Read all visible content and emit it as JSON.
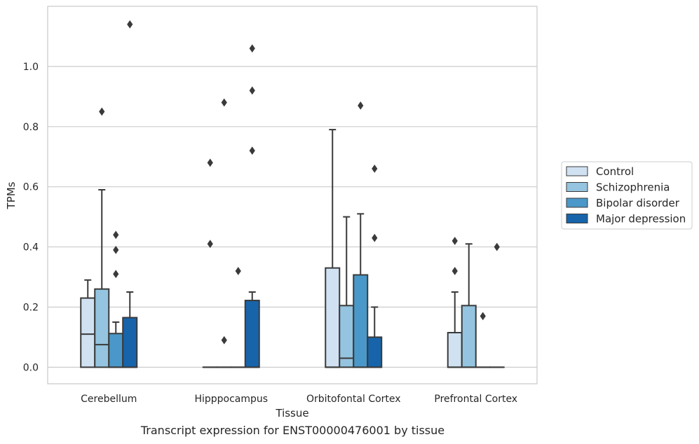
{
  "caption": "Transcript expression for ENST00000476001 by tissue",
  "chart_data": {
    "type": "box",
    "xlabel": "Tissue",
    "ylabel": "TPMs",
    "ylim": [
      -0.055,
      1.2
    ],
    "yticks": [
      0.0,
      0.2,
      0.4,
      0.6,
      0.8,
      1.0
    ],
    "ytick_labels": [
      "0.0",
      "0.2",
      "0.4",
      "0.6",
      "0.8",
      "1.0"
    ],
    "grid": "horizontal",
    "legend_position": "right",
    "categories": [
      "Cerebellum",
      "Hipppocampus",
      "Orbitofontal Cortex",
      "Prefrontal Cortex"
    ],
    "series": [
      {
        "name": "Control",
        "color": "#d0e1f2",
        "boxes": [
          {
            "q1": 0.0,
            "median": 0.11,
            "q3": 0.23,
            "whisker_low": 0.0,
            "whisker_high": 0.29,
            "outliers": []
          },
          {
            "q1": 0.0,
            "median": 0.0,
            "q3": 0.0,
            "whisker_low": 0.0,
            "whisker_high": 0.0,
            "outliers": [
              0.41,
              0.68
            ]
          },
          {
            "q1": 0.0,
            "median": 0.0,
            "q3": 0.33,
            "whisker_low": 0.0,
            "whisker_high": 0.79,
            "outliers": []
          },
          {
            "q1": 0.0,
            "median": 0.0,
            "q3": 0.115,
            "whisker_low": 0.0,
            "whisker_high": 0.25,
            "outliers": [
              0.32,
              0.42
            ]
          }
        ]
      },
      {
        "name": "Schizophrenia",
        "color": "#94c4df",
        "boxes": [
          {
            "q1": 0.0,
            "median": 0.075,
            "q3": 0.26,
            "whisker_low": 0.0,
            "whisker_high": 0.59,
            "outliers": [
              0.85
            ]
          },
          {
            "q1": 0.0,
            "median": 0.0,
            "q3": 0.0,
            "whisker_low": 0.0,
            "whisker_high": 0.0,
            "outliers": [
              0.09,
              0.88
            ]
          },
          {
            "q1": 0.0,
            "median": 0.03,
            "q3": 0.205,
            "whisker_low": 0.0,
            "whisker_high": 0.5,
            "outliers": []
          },
          {
            "q1": 0.0,
            "median": 0.0,
            "q3": 0.205,
            "whisker_low": 0.0,
            "whisker_high": 0.41,
            "outliers": []
          }
        ]
      },
      {
        "name": "Bipolar disorder",
        "color": "#4a98c9",
        "boxes": [
          {
            "q1": 0.0,
            "median": 0.0,
            "q3": 0.112,
            "whisker_low": 0.0,
            "whisker_high": 0.15,
            "outliers": [
              0.31,
              0.39,
              0.44
            ]
          },
          {
            "q1": 0.0,
            "median": 0.0,
            "q3": 0.0,
            "whisker_low": 0.0,
            "whisker_high": 0.0,
            "outliers": [
              0.32
            ]
          },
          {
            "q1": 0.0,
            "median": 0.0,
            "q3": 0.307,
            "whisker_low": 0.0,
            "whisker_high": 0.51,
            "outliers": [
              0.87
            ]
          },
          {
            "q1": 0.0,
            "median": 0.0,
            "q3": 0.0,
            "whisker_low": 0.0,
            "whisker_high": 0.0,
            "outliers": [
              0.17
            ]
          }
        ]
      },
      {
        "name": "Major depression",
        "color": "#1764ab",
        "boxes": [
          {
            "q1": 0.0,
            "median": 0.0,
            "q3": 0.165,
            "whisker_low": 0.0,
            "whisker_high": 0.25,
            "outliers": [
              1.14
            ]
          },
          {
            "q1": 0.0,
            "median": 0.0,
            "q3": 0.222,
            "whisker_low": 0.0,
            "whisker_high": 0.25,
            "outliers": [
              0.72,
              0.92,
              1.06
            ]
          },
          {
            "q1": 0.0,
            "median": 0.0,
            "q3": 0.1,
            "whisker_low": 0.0,
            "whisker_high": 0.2,
            "outliers": [
              0.43,
              0.66
            ]
          },
          {
            "q1": 0.0,
            "median": 0.0,
            "q3": 0.0,
            "whisker_low": 0.0,
            "whisker_high": 0.0,
            "outliers": [
              0.4
            ]
          }
        ]
      }
    ]
  }
}
